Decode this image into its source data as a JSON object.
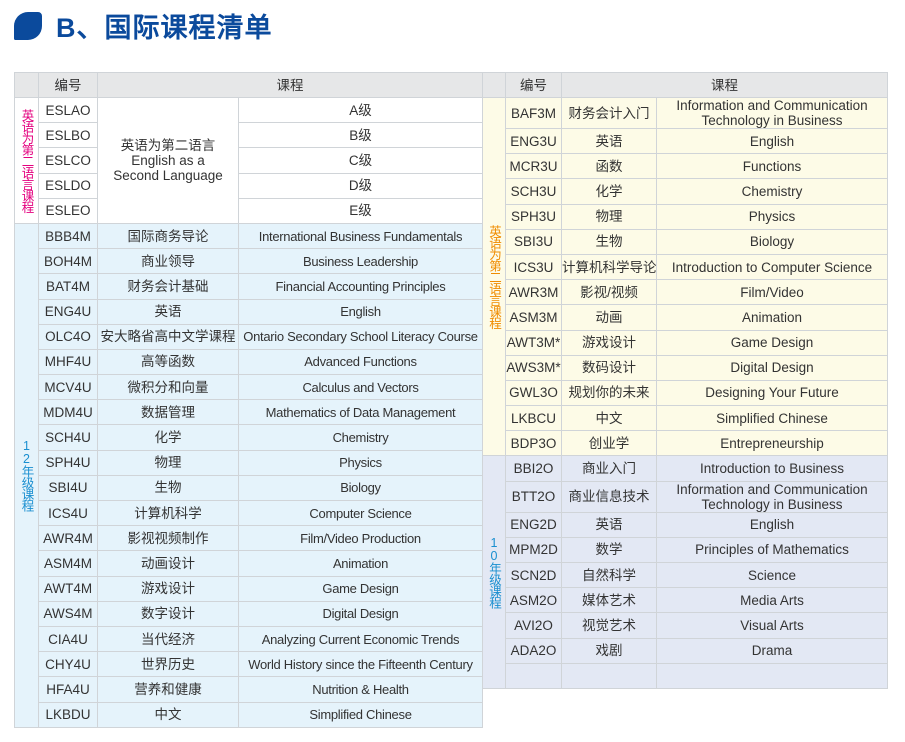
{
  "title": "B、国际课程清单",
  "colors": {
    "title": "#0b4a9c",
    "esl_label": "#e4007f",
    "grade12_label": "#1a8fd0",
    "grade11_label": "#f08c00",
    "grade10_label": "#1a8fd0",
    "grade12_bg": "#e5f3fb",
    "grade11_bg": "#fdfbe7",
    "grade10_bg": "#e3e8f4",
    "esl_bg": "#ffffff"
  },
  "header": {
    "code": "编号",
    "course": "课程"
  },
  "left": {
    "groups": [
      {
        "label": "英语为第二语言课程",
        "color": "#e4007f",
        "bg": "#ffffff",
        "merged_cn": "英语为第二语言 English as a Second Language",
        "rows": [
          {
            "code": "ESLAO",
            "en": "A级"
          },
          {
            "code": "ESLBO",
            "en": "B级"
          },
          {
            "code": "ESLCO",
            "en": "C级"
          },
          {
            "code": "ESLDO",
            "en": "D级"
          },
          {
            "code": "ESLEO",
            "en": "E级"
          }
        ]
      },
      {
        "label": "12年级课程",
        "color": "#1a8fd0",
        "bg": "#e5f3fb",
        "rows": [
          {
            "code": "BBB4M",
            "cn": "国际商务导论",
            "en": "International Business Fundamentals"
          },
          {
            "code": "BOH4M",
            "cn": "商业领导",
            "en": "Business Leadership"
          },
          {
            "code": "BAT4M",
            "cn": "财务会计基础",
            "en": "Financial Accounting Principles"
          },
          {
            "code": "ENG4U",
            "cn": "英语",
            "en": "English"
          },
          {
            "code": "OLC4O",
            "cn": "安大略省高中文学课程",
            "en": "Ontario Secondary School Literacy Course"
          },
          {
            "code": "MHF4U",
            "cn": "高等函数",
            "en": "Advanced Functions"
          },
          {
            "code": "MCV4U",
            "cn": "微积分和向量",
            "en": "Calculus and Vectors"
          },
          {
            "code": "MDM4U",
            "cn": "数据管理",
            "en": "Mathematics of Data Management"
          },
          {
            "code": "SCH4U",
            "cn": "化学",
            "en": "Chemistry"
          },
          {
            "code": "SPH4U",
            "cn": "物理",
            "en": "Physics"
          },
          {
            "code": "SBI4U",
            "cn": "生物",
            "en": "Biology"
          },
          {
            "code": "ICS4U",
            "cn": "计算机科学",
            "en": "Computer Science"
          },
          {
            "code": "AWR4M",
            "cn": "影视视频制作",
            "en": "Film/Video Production"
          },
          {
            "code": "ASM4M",
            "cn": "动画设计",
            "en": "Animation"
          },
          {
            "code": "AWT4M",
            "cn": "游戏设计",
            "en": "Game Design"
          },
          {
            "code": "AWS4M",
            "cn": "数字设计",
            "en": "Digital Design"
          },
          {
            "code": "CIA4U",
            "cn": "当代经济",
            "en": "Analyzing Current Economic Trends"
          },
          {
            "code": "CHY4U",
            "cn": "世界历史",
            "en": "World History since the Fifteenth Century"
          },
          {
            "code": "HFA4U",
            "cn": "营养和健康",
            "en": "Nutrition & Health"
          },
          {
            "code": "LKBDU",
            "cn": "中文",
            "en": "Simplified Chinese"
          }
        ]
      }
    ]
  },
  "right": {
    "groups": [
      {
        "label": "英语为第二语言课程",
        "color": "#f08c00",
        "bg": "#fdfbe7",
        "rows": [
          {
            "code": "BAF3M",
            "cn": "财务会计入门",
            "en": "Information and Communication Technology in Business",
            "span": 2
          },
          {
            "code": "ENG3U",
            "cn": "英语",
            "en": "English"
          },
          {
            "code": "MCR3U",
            "cn": "函数",
            "en": "Functions"
          },
          {
            "code": "SCH3U",
            "cn": "化学",
            "en": "Chemistry"
          },
          {
            "code": "SPH3U",
            "cn": "物理",
            "en": "Physics"
          },
          {
            "code": "SBI3U",
            "cn": "生物",
            "en": "Biology"
          },
          {
            "code": "ICS3U",
            "cn": "计算机科学导论",
            "en": "Introduction to Computer Science"
          },
          {
            "code": "AWR3M",
            "cn": "影视/视频",
            "en": "Film/Video"
          },
          {
            "code": "ASM3M",
            "cn": "动画",
            "en": "Animation"
          },
          {
            "code": "AWT3M*",
            "cn": "游戏设计",
            "en": "Game Design"
          },
          {
            "code": "AWS3M*",
            "cn": "数码设计",
            "en": "Digital Design"
          },
          {
            "code": "GWL3O",
            "cn": "规划你的未来",
            "en": "Designing Your Future"
          },
          {
            "code": "LKBCU",
            "cn": "中文",
            "en": "Simplified Chinese"
          },
          {
            "code": "BDP3O",
            "cn": "创业学",
            "en": "Entrepreneurship"
          }
        ]
      },
      {
        "label": "10年级课程",
        "color": "#1a8fd0",
        "bg": "#e3e8f4",
        "rows": [
          {
            "code": "BBI2O",
            "cn": "商业入门",
            "en": "Introduction to Business"
          },
          {
            "code": "BTT2O",
            "cn": "商业信息技术",
            "en": "Information and Communication Technology in Business",
            "span": 2
          },
          {
            "code": "ENG2D",
            "cn": "英语",
            "en": "English"
          },
          {
            "code": "MPM2D",
            "cn": "数学",
            "en": "Principles of Mathematics"
          },
          {
            "code": "SCN2D",
            "cn": "自然科学",
            "en": "Science"
          },
          {
            "code": "ASM2O",
            "cn": "媒体艺术",
            "en": "Media Arts"
          },
          {
            "code": "AVI2O",
            "cn": "视觉艺术",
            "en": "Visual Arts"
          },
          {
            "code": "ADA2O",
            "cn": "戏剧",
            "en": "Drama"
          },
          {
            "code": "",
            "cn": "",
            "en": ""
          }
        ]
      }
    ]
  }
}
